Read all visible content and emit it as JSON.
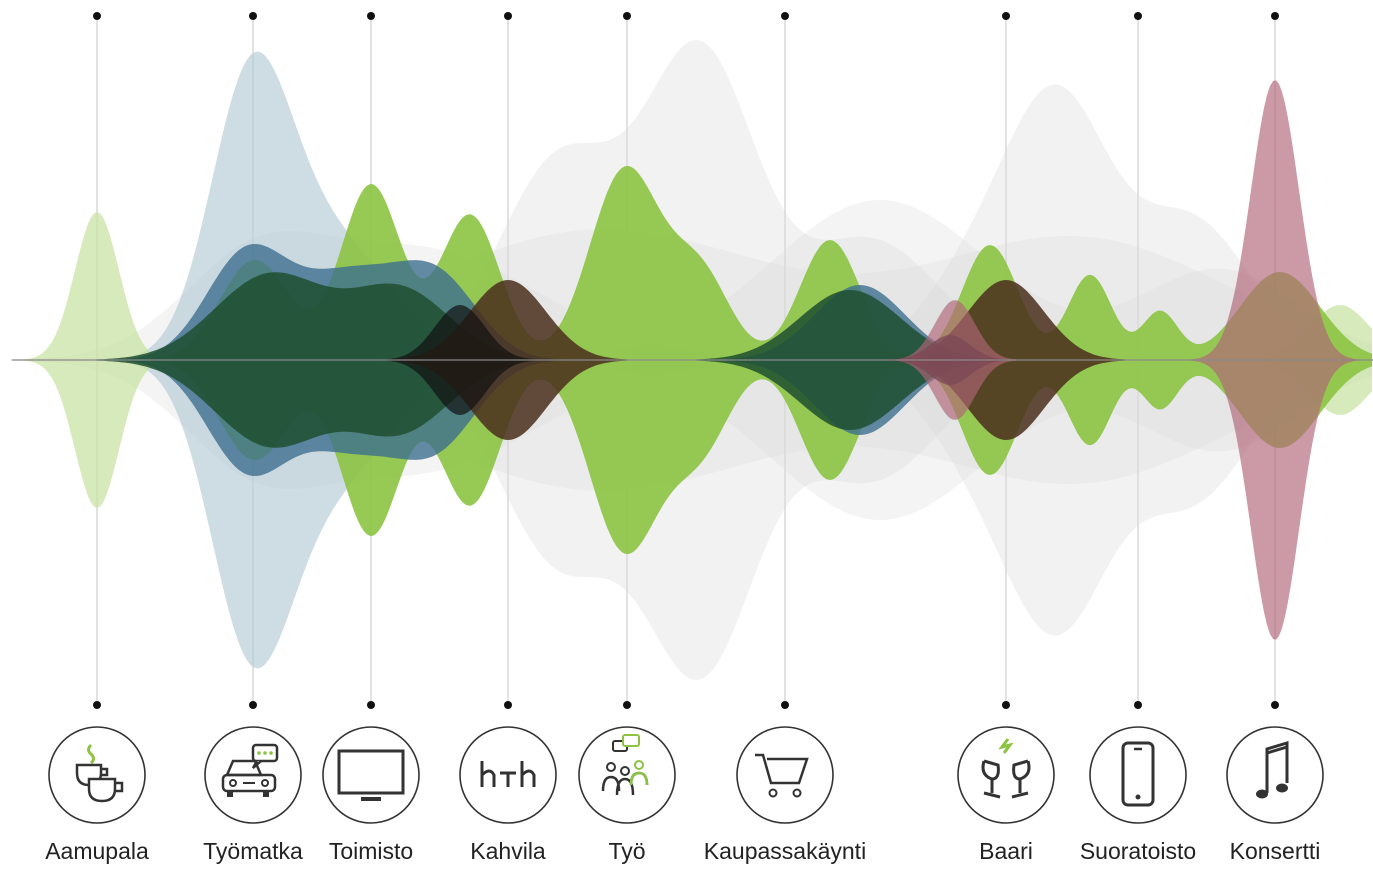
{
  "activities": [
    {
      "label": "Aamupala",
      "icon": "coffee-cups-icon"
    },
    {
      "label": "Työmatka",
      "icon": "car-chat-icon"
    },
    {
      "label": "Toimisto",
      "icon": "monitor-icon"
    },
    {
      "label": "Kahvila",
      "icon": "cafe-tables-icon"
    },
    {
      "label": "Työ",
      "icon": "team-chat-icon"
    },
    {
      "label": "Kaupassakäynti",
      "icon": "shopping-cart-icon"
    },
    {
      "label": "Baari",
      "icon": "wine-glasses-icon"
    },
    {
      "label": "Suoratoisto",
      "icon": "smartphone-icon"
    },
    {
      "label": "Konsertti",
      "icon": "music-note-icon"
    }
  ],
  "colors": {
    "green": "#8cc342",
    "light_green": "#c9e3a4",
    "dark_green": "#1f4f30",
    "blue": "#3d6f8e",
    "light_blue": "#b4c9d6",
    "brown": "#4a2e1c",
    "pink": "#b06478",
    "gray": "#d9d9d9",
    "icon_green": "#8cc342",
    "icon_dark": "#333333"
  }
}
